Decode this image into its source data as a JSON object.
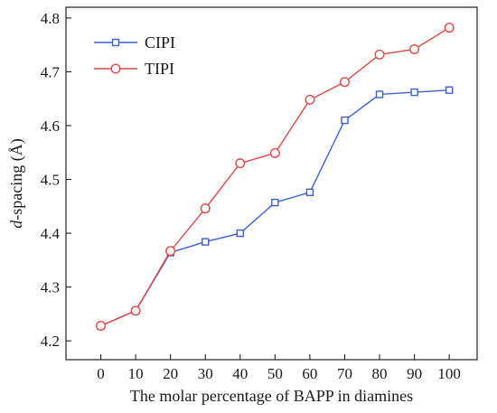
{
  "chart_data": {
    "type": "line",
    "xlabel": "The molar percentage of BAPP in diamines",
    "ylabel_italic": "d",
    "ylabel_rest": "-spacing (Å)",
    "x": [
      0,
      10,
      20,
      30,
      40,
      50,
      60,
      70,
      80,
      90,
      100
    ],
    "xticks": [
      "0",
      "10",
      "20",
      "30",
      "40",
      "50",
      "60",
      "70",
      "80",
      "90",
      "100"
    ],
    "yticks": [
      "4.2",
      "4.3",
      "4.4",
      "4.5",
      "4.6",
      "4.7",
      "4.8"
    ],
    "ytick_values": [
      4.2,
      4.3,
      4.4,
      4.5,
      4.6,
      4.7,
      4.8
    ],
    "xlim": [
      -10,
      108
    ],
    "ylim": [
      4.165,
      4.82
    ],
    "grid": false,
    "legend_position": "top-left",
    "series": [
      {
        "name": "CIPI",
        "color": "#3a5fd9",
        "marker": "square",
        "values": [
          4.228,
          4.256,
          4.364,
          4.384,
          4.4,
          4.457,
          4.476,
          4.61,
          4.658,
          4.662,
          4.666
        ]
      },
      {
        "name": "TIPI",
        "color": "#e04848",
        "marker": "circle",
        "values": [
          4.228,
          4.256,
          4.367,
          4.446,
          4.53,
          4.549,
          4.648,
          4.681,
          4.732,
          4.742,
          4.782
        ]
      }
    ]
  }
}
